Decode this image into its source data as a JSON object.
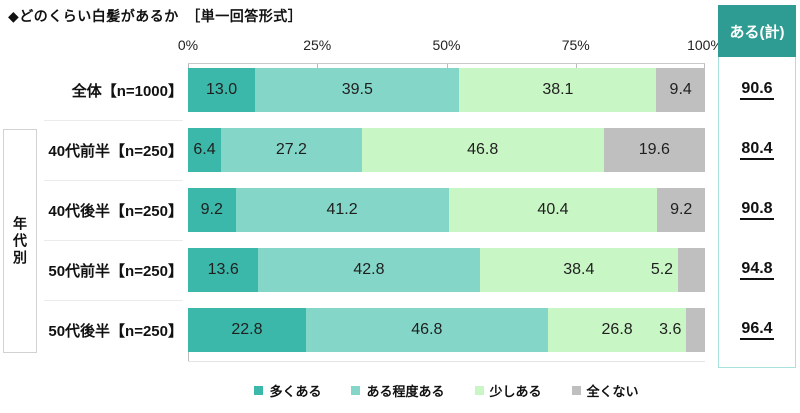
{
  "title": "◆どのくらい白髪があるか　［単一回答形式］",
  "chart_data": {
    "type": "bar",
    "stacked": true,
    "orientation": "horizontal",
    "title": "どのくらい白髪があるか（単一回答形式）",
    "xlim": [
      0,
      100
    ],
    "x_ticks": [
      "0%",
      "25%",
      "50%",
      "75%",
      "100%"
    ],
    "grid": false,
    "legend_position": "bottom",
    "categories": [
      "全体【n=1000】",
      "40代前半【n=250】",
      "40代後半【n=250】",
      "50代前半【n=250】",
      "50代後半【n=250】"
    ],
    "group_label": "年代別",
    "group_rows": [
      1,
      4
    ],
    "series": [
      {
        "name": "多くある",
        "color": "#3bb8aa",
        "values": [
          13.0,
          6.4,
          9.2,
          13.6,
          22.8
        ]
      },
      {
        "name": "ある程度ある",
        "color": "#84d7c8",
        "values": [
          39.5,
          27.2,
          41.2,
          42.8,
          46.8
        ]
      },
      {
        "name": "少しある",
        "color": "#c9f6c5",
        "values": [
          38.1,
          46.8,
          40.4,
          38.4,
          26.8
        ]
      },
      {
        "name": "全くない",
        "color": "#bfbfbf",
        "values": [
          9.4,
          19.6,
          9.2,
          5.2,
          3.6
        ]
      }
    ],
    "totals": {
      "label": "ある(計)",
      "values": [
        90.6,
        80.4,
        90.8,
        94.8,
        96.4
      ]
    }
  },
  "colors": {
    "totals_header_bg": "#2e9c92",
    "totals_border": "#a9e2dc",
    "axis_line": "#c9c9c9",
    "text": "#111111"
  }
}
